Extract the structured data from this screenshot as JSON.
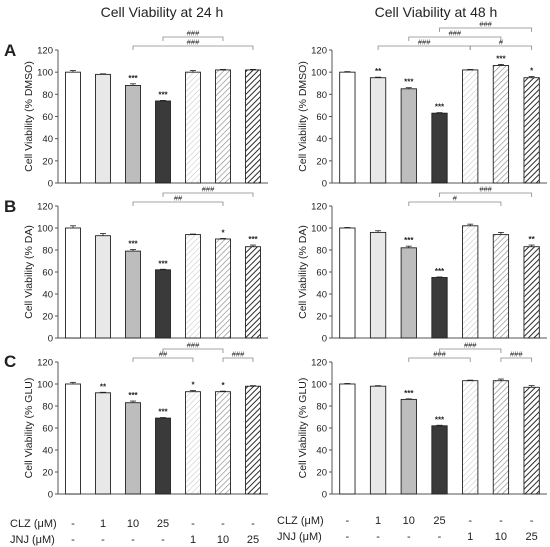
{
  "column_titles": [
    "Cell Viability at 24 h",
    "Cell Viability at 48 h"
  ],
  "row_labels": [
    "A",
    "B",
    "C"
  ],
  "colors": {
    "fill_light": "#e8e8e8",
    "fill_mid": "#bdbdbd",
    "fill_dark": "#3a3a3a",
    "stroke": "#222222",
    "bracket": "#888888"
  },
  "conditions": {
    "clz_label": "CLZ (μM)",
    "jnj_label": "JNJ (μM)",
    "clz_values": [
      "-",
      "1",
      "10",
      "25",
      "-",
      "-",
      "-"
    ],
    "jnj_values": [
      "-",
      "-",
      "-",
      "-",
      "1",
      "10",
      "25"
    ]
  },
  "chart_data": [
    {
      "type": "bar",
      "panel": "A",
      "time": "24 h",
      "ylabel": "Cell Viability (% DMSO)",
      "ylim": [
        0,
        120
      ],
      "yticks": [
        0,
        20,
        40,
        60,
        80,
        100,
        120
      ],
      "values": [
        100,
        98,
        88,
        74,
        100,
        102,
        102
      ],
      "errors": [
        1.5,
        0.5,
        1.5,
        0.5,
        1.5,
        0.5,
        0.5
      ],
      "stars": [
        "",
        "",
        "***",
        "***",
        "",
        "",
        ""
      ],
      "brackets": [
        {
          "from": 2,
          "to": 6,
          "label": "###",
          "level": 0
        },
        {
          "from": 3,
          "to": 5,
          "label": "###",
          "level": 1
        }
      ]
    },
    {
      "type": "bar",
      "panel": "A",
      "time": "48 h",
      "ylabel": "Cell Viability (% DMSO)",
      "ylim": [
        0,
        120
      ],
      "yticks": [
        0,
        20,
        40,
        60,
        80,
        100,
        120
      ],
      "values": [
        100,
        95,
        85,
        63,
        102,
        106,
        95
      ],
      "errors": [
        0.5,
        0.5,
        1,
        0.5,
        0.5,
        1,
        1
      ],
      "stars": [
        "",
        "**",
        "***",
        "***",
        "",
        "***",
        "*"
      ],
      "brackets": [
        {
          "from": 1,
          "to": 4,
          "label": "###",
          "level": 0
        },
        {
          "from": 4,
          "to": 6,
          "label": "#",
          "level": 0
        },
        {
          "from": 2,
          "to": 5,
          "label": "###",
          "level": 1
        },
        {
          "from": 3,
          "to": 6,
          "label": "###",
          "level": 2
        }
      ]
    },
    {
      "type": "bar",
      "panel": "B",
      "time": "24 h",
      "ylabel": "Cell Viability (% DA)",
      "ylim": [
        0,
        120
      ],
      "yticks": [
        0,
        20,
        40,
        60,
        80,
        100,
        120
      ],
      "values": [
        100,
        93,
        79,
        62,
        94,
        90,
        83
      ],
      "errors": [
        2,
        2,
        1.5,
        0.5,
        0.5,
        0.5,
        1.5
      ],
      "stars": [
        "",
        "",
        "***",
        "***",
        "",
        "*",
        "***"
      ],
      "brackets": [
        {
          "from": 2,
          "to": 5,
          "label": "##",
          "level": 0
        },
        {
          "from": 3,
          "to": 6,
          "label": "###",
          "level": 1
        }
      ]
    },
    {
      "type": "bar",
      "panel": "B",
      "time": "48 h",
      "ylabel": "Cell Viability (% DA)",
      "ylim": [
        0,
        120
      ],
      "yticks": [
        0,
        20,
        40,
        60,
        80,
        100,
        120
      ],
      "values": [
        100,
        96,
        82,
        55,
        102,
        94,
        83
      ],
      "errors": [
        0.5,
        1.5,
        1.5,
        0.5,
        1.5,
        2,
        1.5
      ],
      "stars": [
        "",
        "",
        "***",
        "***",
        "",
        "",
        "**"
      ],
      "brackets": [
        {
          "from": 2,
          "to": 5,
          "label": "#",
          "level": 0
        },
        {
          "from": 3,
          "to": 6,
          "label": "###",
          "level": 1
        }
      ]
    },
    {
      "type": "bar",
      "panel": "C",
      "time": "24 h",
      "ylabel": "Cell Viability (% GLU)",
      "ylim": [
        0,
        120
      ],
      "yticks": [
        0,
        20,
        40,
        60,
        80,
        100,
        120
      ],
      "values": [
        100,
        92,
        83,
        69,
        93,
        93,
        98
      ],
      "errors": [
        1.5,
        0.5,
        1.5,
        0.5,
        1,
        0.5,
        0.5
      ],
      "stars": [
        "",
        "**",
        "***",
        "***",
        "*",
        "*",
        ""
      ],
      "brackets": [
        {
          "from": 2,
          "to": 4,
          "label": "##",
          "level": 0
        },
        {
          "from": 5,
          "to": 6,
          "label": "###",
          "level": 0
        },
        {
          "from": 3,
          "to": 5,
          "label": "###",
          "level": 1
        }
      ]
    },
    {
      "type": "bar",
      "panel": "C",
      "time": "48 h",
      "ylabel": "Cell Viability (% GLU)",
      "ylim": [
        0,
        120
      ],
      "yticks": [
        0,
        20,
        40,
        60,
        80,
        100,
        120
      ],
      "values": [
        100,
        98,
        86,
        62,
        103,
        103,
        97
      ],
      "errors": [
        0.5,
        0.5,
        0.5,
        0.5,
        0.5,
        1.5,
        1.5
      ],
      "stars": [
        "",
        "",
        "***",
        "***",
        "",
        "",
        ""
      ],
      "brackets": [
        {
          "from": 2,
          "to": 4,
          "label": "###",
          "level": 0
        },
        {
          "from": 5,
          "to": 6,
          "label": "###",
          "level": 0
        },
        {
          "from": 3,
          "to": 5,
          "label": "###",
          "level": 1
        }
      ]
    }
  ]
}
